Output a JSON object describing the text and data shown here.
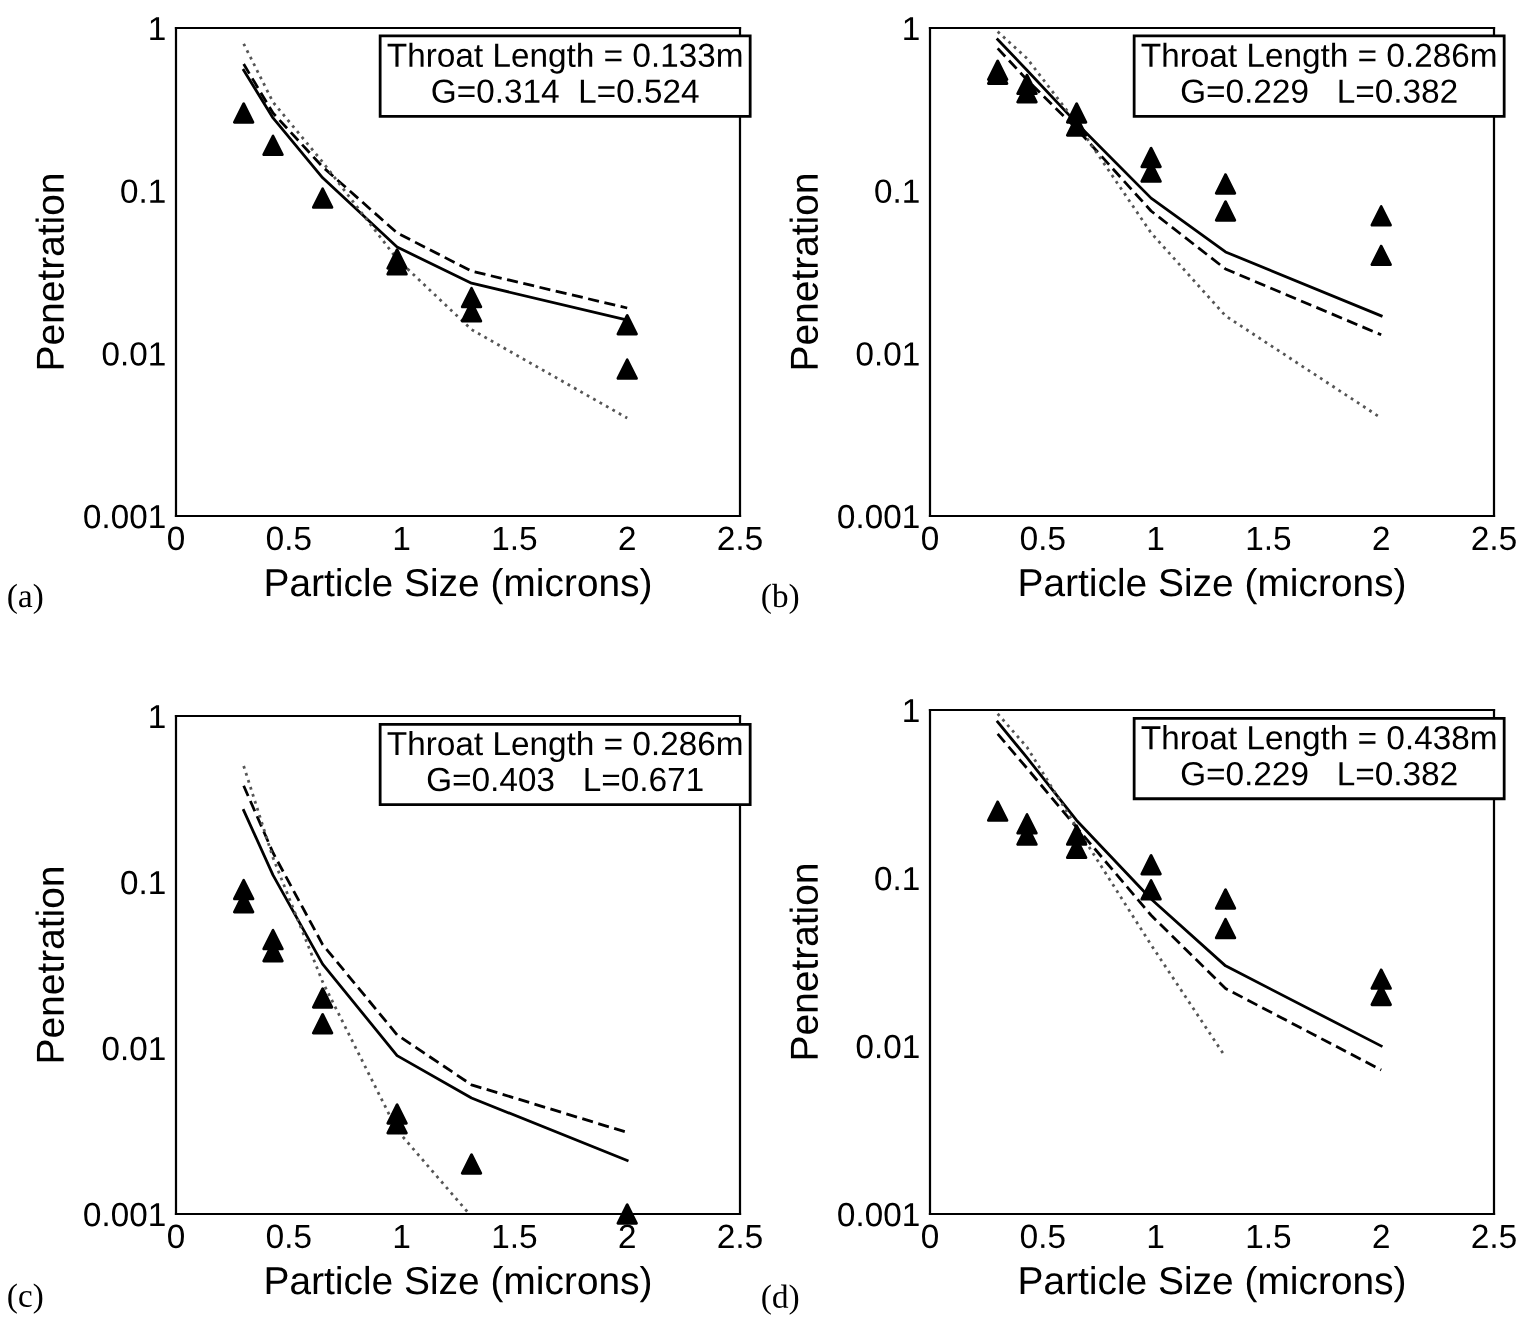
{
  "chart_data": [
    {
      "type": "line",
      "xlabel": "Particle Size (microns)",
      "ylabel": "Penetration",
      "log": "y",
      "xlim": [
        0,
        2.5
      ],
      "xticks": [
        0,
        0.5,
        1,
        1.5,
        2,
        2.5
      ],
      "ylim": [
        0.001,
        1
      ],
      "yticks": [
        0.001,
        0.01,
        0.1,
        1
      ],
      "grid": false,
      "legend": false,
      "annotations": [
        "Throat Length = 0.133m\nG=0.314  L=0.524",
        "(a)"
      ],
      "series": [
        {
          "line_style": "solid",
          "color": "#000000",
          "x": [
            0.3,
            0.43,
            0.65,
            0.98,
            1.31,
            2.0
          ],
          "values": [
            0.55,
            0.28,
            0.12,
            0.045,
            0.027,
            0.016
          ]
        },
        {
          "line_style": "dashed",
          "color": "#000000",
          "x": [
            0.3,
            0.43,
            0.65,
            0.98,
            1.31,
            2.0
          ],
          "values": [
            0.6,
            0.3,
            0.14,
            0.055,
            0.032,
            0.019
          ]
        },
        {
          "line_style": "dotted",
          "color": "#555555",
          "x": [
            0.3,
            0.43,
            0.65,
            0.98,
            1.31,
            2.0
          ],
          "values": [
            0.8,
            0.35,
            0.15,
            0.038,
            0.014,
            0.004
          ]
        },
        {
          "type": "scatter",
          "marker": "triangle",
          "color": "#000000",
          "x": [
            0.3,
            0.43,
            0.65,
            0.98,
            0.98,
            1.31,
            1.31,
            2.0,
            2.0
          ],
          "values": [
            0.3,
            0.19,
            0.09,
            0.038,
            0.035,
            0.022,
            0.018,
            0.015,
            0.008
          ]
        }
      ]
    },
    {
      "type": "line",
      "xlabel": "Particle Size (microns)",
      "ylabel": "Penetration",
      "log": "y",
      "xlim": [
        0,
        2.5
      ],
      "xticks": [
        0,
        0.5,
        1,
        1.5,
        2,
        2.5
      ],
      "ylim": [
        0.001,
        1
      ],
      "yticks": [
        0.001,
        0.01,
        0.1,
        1
      ],
      "grid": false,
      "legend": false,
      "annotations": [
        "Throat Length = 0.286m\nG=0.229   L=0.382",
        "(b)"
      ],
      "series": [
        {
          "line_style": "solid",
          "color": "#000000",
          "x": [
            0.3,
            0.43,
            0.65,
            0.98,
            1.31,
            2.0
          ],
          "values": [
            0.85,
            0.55,
            0.26,
            0.09,
            0.042,
            0.017
          ]
        },
        {
          "line_style": "dashed",
          "color": "#000000",
          "x": [
            0.3,
            0.43,
            0.65,
            0.98,
            1.31,
            2.0
          ],
          "values": [
            0.75,
            0.48,
            0.24,
            0.075,
            0.033,
            0.013
          ]
        },
        {
          "line_style": "dotted",
          "color": "#555555",
          "x": [
            0.3,
            0.43,
            0.65,
            0.98,
            1.31,
            2.0
          ],
          "values": [
            0.95,
            0.65,
            0.26,
            0.055,
            0.017,
            0.004
          ]
        },
        {
          "type": "scatter",
          "marker": "triangle",
          "color": "#000000",
          "x": [
            0.3,
            0.3,
            0.43,
            0.43,
            0.65,
            0.65,
            0.98,
            0.98,
            1.31,
            1.31,
            2.0,
            2.0
          ],
          "values": [
            0.55,
            0.52,
            0.45,
            0.4,
            0.3,
            0.25,
            0.16,
            0.13,
            0.11,
            0.075,
            0.07,
            0.04
          ]
        }
      ]
    },
    {
      "type": "line",
      "xlabel": "Particle Size (microns)",
      "ylabel": "Penetration",
      "log": "y",
      "xlim": [
        0,
        2.5
      ],
      "xticks": [
        0,
        0.5,
        1,
        1.5,
        2,
        2.5
      ],
      "ylim": [
        0.001,
        1
      ],
      "yticks": [
        0.001,
        0.01,
        0.1,
        1
      ],
      "grid": false,
      "legend": false,
      "annotations": [
        "Throat Length = 0.286m\nG=0.403   L=0.671",
        "(c)"
      ],
      "series": [
        {
          "line_style": "solid",
          "color": "#000000",
          "x": [
            0.3,
            0.43,
            0.65,
            0.98,
            1.31,
            2.0
          ],
          "values": [
            0.27,
            0.11,
            0.032,
            0.009,
            0.005,
            0.0021
          ]
        },
        {
          "line_style": "dashed",
          "color": "#000000",
          "x": [
            0.3,
            0.43,
            0.65,
            0.98,
            1.31,
            2.0
          ],
          "values": [
            0.38,
            0.15,
            0.042,
            0.012,
            0.006,
            0.0031
          ]
        },
        {
          "line_style": "dotted",
          "color": "#555555",
          "x": [
            0.3,
            0.43,
            0.65,
            0.98,
            1.3
          ],
          "values": [
            0.5,
            0.14,
            0.025,
            0.0032,
            0.001
          ]
        },
        {
          "type": "scatter",
          "marker": "triangle",
          "color": "#000000",
          "x": [
            0.3,
            0.3,
            0.43,
            0.43,
            0.65,
            0.65,
            0.98,
            0.98,
            1.31,
            2.0
          ],
          "values": [
            0.09,
            0.075,
            0.045,
            0.038,
            0.02,
            0.014,
            0.004,
            0.0035,
            0.002,
            0.001
          ]
        }
      ]
    },
    {
      "type": "line",
      "xlabel": "Particle Size (microns)",
      "ylabel": "Penetration",
      "log": "y",
      "xlim": [
        0,
        2.5
      ],
      "xticks": [
        0,
        0.5,
        1,
        1.5,
        2,
        2.5
      ],
      "ylim": [
        0.001,
        1
      ],
      "yticks": [
        0.001,
        0.01,
        0.1,
        1
      ],
      "grid": false,
      "legend": false,
      "annotations": [
        "Throat Length = 0.438m\nG=0.229   L=0.382",
        "(d)"
      ],
      "series": [
        {
          "line_style": "solid",
          "color": "#000000",
          "x": [
            0.3,
            0.43,
            0.65,
            0.98,
            1.31,
            2.0
          ],
          "values": [
            0.85,
            0.52,
            0.22,
            0.075,
            0.03,
            0.01
          ]
        },
        {
          "line_style": "dashed",
          "color": "#000000",
          "x": [
            0.3,
            0.43,
            0.65,
            0.98,
            1.31,
            2.0
          ],
          "values": [
            0.72,
            0.45,
            0.2,
            0.06,
            0.022,
            0.0072
          ]
        },
        {
          "line_style": "dotted",
          "color": "#555555",
          "x": [
            0.3,
            0.43,
            0.65,
            0.98,
            1.3
          ],
          "values": [
            0.95,
            0.6,
            0.2,
            0.04,
            0.009
          ]
        },
        {
          "type": "scatter",
          "marker": "triangle",
          "color": "#000000",
          "x": [
            0.3,
            0.43,
            0.43,
            0.65,
            0.65,
            0.98,
            0.98,
            1.31,
            1.31,
            2.0,
            2.0
          ],
          "values": [
            0.25,
            0.21,
            0.18,
            0.18,
            0.15,
            0.12,
            0.085,
            0.075,
            0.05,
            0.025,
            0.02
          ]
        }
      ]
    }
  ]
}
